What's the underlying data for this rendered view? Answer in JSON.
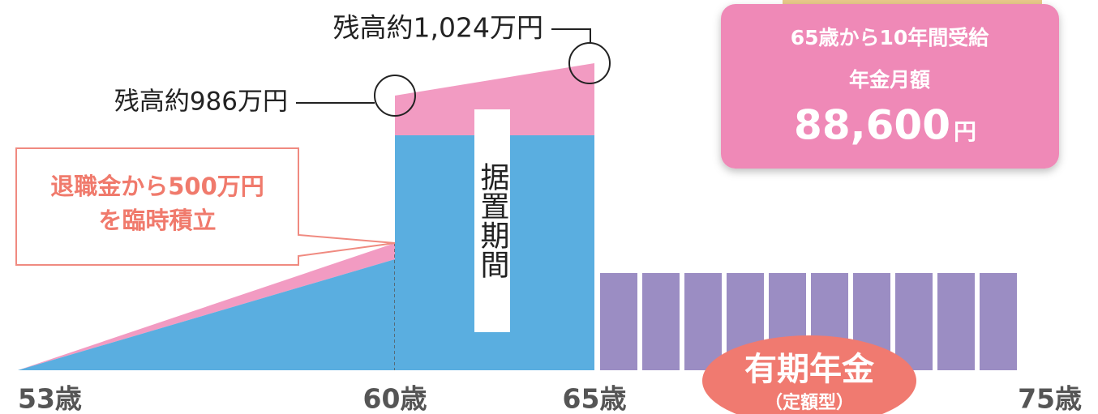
{
  "balance_high": "残高約1,024万円",
  "balance_low": "残高約986万円",
  "callout": {
    "line1": "退職金から500万円",
    "line2": "を臨時積立"
  },
  "deferral_period": "据置期間",
  "summary": {
    "line1": "65歳から10年間受給",
    "line2": "年金月額",
    "amount": "88,600",
    "unit": "円"
  },
  "annuity": {
    "title": "有期年金",
    "subtitle": "（定額型）"
  },
  "ages": [
    "53歳",
    "60歳",
    "65歳",
    "75歳"
  ]
}
